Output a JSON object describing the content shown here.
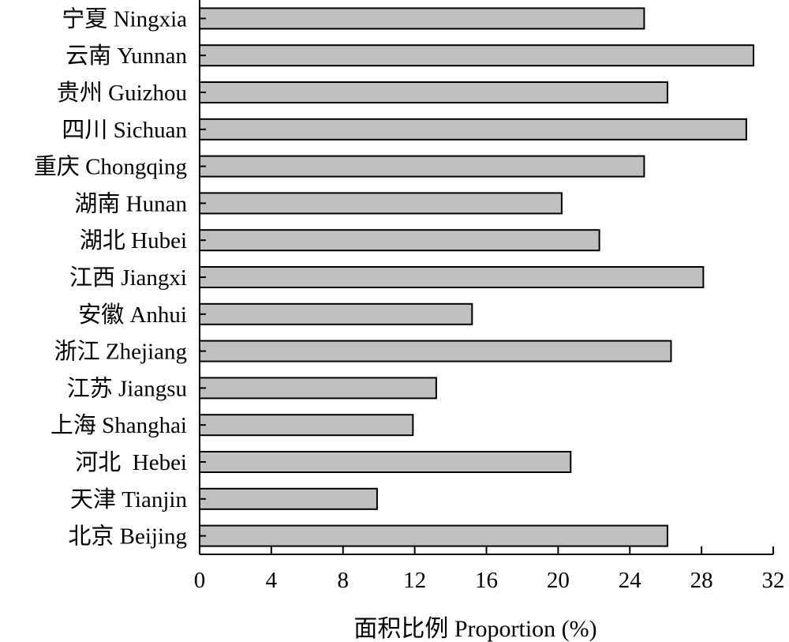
{
  "chart_data": {
    "type": "bar",
    "orientation": "horizontal",
    "categories": [
      "宁夏 Ningxia",
      "云南 Yunnan",
      "贵州 Guizhou",
      "四川 Sichuan",
      "重庆 Chongqing",
      "湖南 Hunan",
      "湖北 Hubei",
      "江西 Jiangxi",
      "安徽 Anhui",
      "浙江 Zhejiang",
      "江苏 Jiangsu",
      "上海 Shanghai",
      "河北  Hebei",
      "天津 Tianjin",
      "北京 Beijing"
    ],
    "values": [
      24.8,
      30.9,
      26.1,
      30.5,
      24.8,
      20.2,
      22.3,
      28.1,
      15.2,
      26.3,
      13.2,
      11.9,
      20.7,
      9.9,
      26.1
    ],
    "xlabel": "面积比例 Proportion (%)",
    "ylabel": "",
    "title": "",
    "xlim": [
      0,
      32
    ],
    "xticks": [
      0,
      4,
      8,
      12,
      16,
      20,
      24,
      28,
      32
    ],
    "bar_color": "#c0c0c0",
    "grid": false
  }
}
